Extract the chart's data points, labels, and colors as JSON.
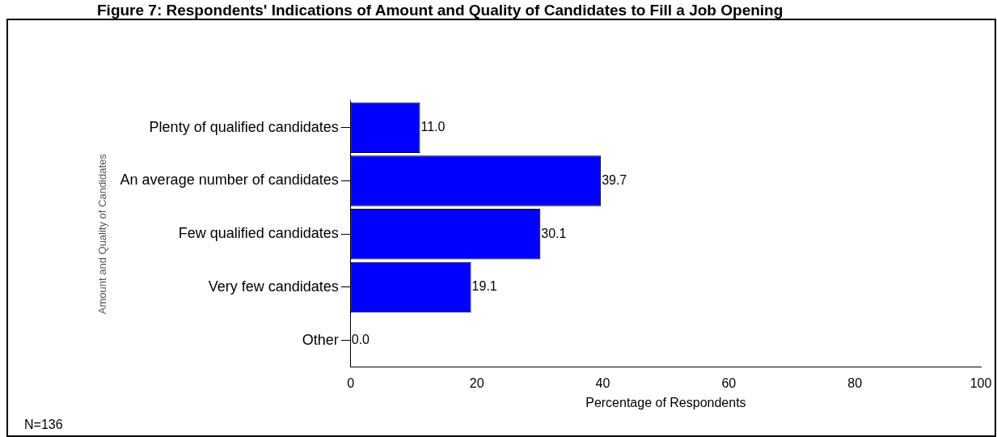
{
  "chart_data": {
    "type": "bar",
    "orientation": "horizontal",
    "title": "Figure 7: Respondents' Indications of Amount and Quality of Candidates to Fill a Job Opening",
    "xlabel": "Percentage of Respondents",
    "ylabel": "Amount and Quality of Candidates",
    "categories": [
      "Plenty of qualified candidates",
      "An average number of candidates",
      "Few qualified candidates",
      "Very few candidates",
      "Other"
    ],
    "values": [
      11.0,
      39.7,
      30.1,
      19.1,
      0.0
    ],
    "color": "#0000ff",
    "value_labels": [
      "11.0",
      "39.7",
      "30.1",
      "19.1",
      "0.0"
    ],
    "xlim": [
      0,
      100
    ],
    "xticks": [
      0,
      20,
      40,
      60,
      80,
      100
    ],
    "grid": false,
    "legend": false,
    "annotations": [
      "N=136"
    ]
  }
}
